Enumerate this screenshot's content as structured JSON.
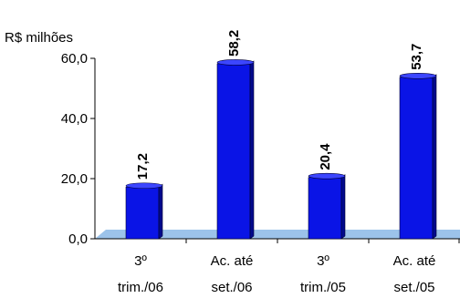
{
  "chart_data": {
    "type": "bar",
    "y_unit_label": "R$ milhões",
    "categories": [
      [
        "3º",
        "trim./06"
      ],
      [
        "Ac. até",
        "set./06"
      ],
      [
        "3º",
        "trim./05"
      ],
      [
        "Ac. até",
        "set./05"
      ]
    ],
    "values": [
      17.2,
      58.2,
      20.4,
      53.7
    ],
    "data_labels": [
      "17,2",
      "58,2",
      "20,4",
      "53,7"
    ],
    "yticks": [
      "0,0",
      "20,0",
      "40,0",
      "60,0"
    ],
    "ylim": [
      0,
      60
    ],
    "grid": false,
    "legend": "none",
    "colors": {
      "bar_front": "#0a14e6",
      "bar_dark": "#020a8c",
      "bar_light": "#3c46ff",
      "floor": "#9cc3ea",
      "axis": "#000000"
    }
  }
}
